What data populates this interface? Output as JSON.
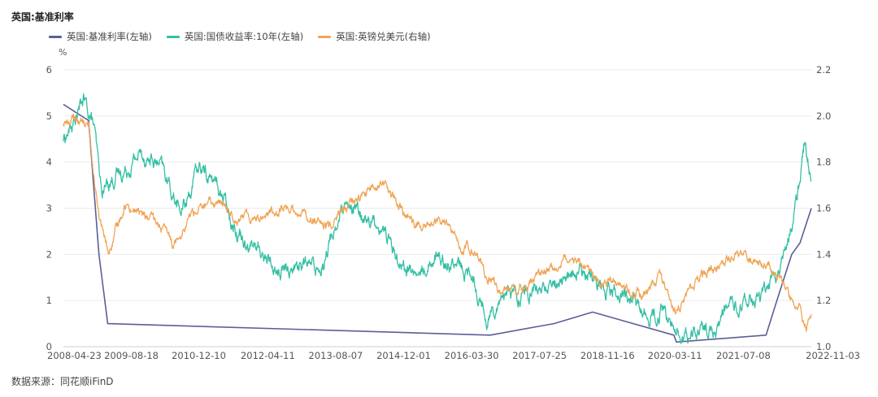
{
  "chart_data": {
    "type": "line",
    "title": "英国:基准利率",
    "source": "数据来源：同花顺iFinD",
    "left_axis": {
      "unit": "%",
      "ylim": [
        0,
        6
      ],
      "ticks": [
        "0",
        "1",
        "2",
        "3",
        "4",
        "5",
        "6"
      ]
    },
    "right_axis": {
      "ylim": [
        1.0,
        2.2
      ],
      "ticks": [
        "1.0",
        "1.2",
        "1.4",
        "1.6",
        "1.8",
        "2.0",
        "2.2"
      ]
    },
    "x_range": [
      2008.31,
      2022.84
    ],
    "x_ticks": [
      {
        "label": "2008-04-23",
        "t": 2008.31
      },
      {
        "label": "2009-08-18",
        "t": 2009.63
      },
      {
        "label": "2010-12-10",
        "t": 2010.94
      },
      {
        "label": "2012-04-11",
        "t": 2012.28
      },
      {
        "label": "2013-08-07",
        "t": 2013.6
      },
      {
        "label": "2014-12-01",
        "t": 2014.92
      },
      {
        "label": "2016-03-30",
        "t": 2016.24
      },
      {
        "label": "2017-07-25",
        "t": 2017.56
      },
      {
        "label": "2018-11-16",
        "t": 2018.88
      },
      {
        "label": "2020-03-11",
        "t": 2020.19
      },
      {
        "label": "2021-07-08",
        "t": 2021.52
      },
      {
        "label": "2022-11-03",
        "t": 2022.84
      }
    ],
    "series": [
      {
        "name": "英国:基准利率(左轴)",
        "axis": "left",
        "color": "#5a5f96",
        "points": [
          [
            2008.31,
            5.25
          ],
          [
            2008.8,
            4.9
          ],
          [
            2009.0,
            2.0
          ],
          [
            2009.17,
            0.5
          ],
          [
            2016.6,
            0.25
          ],
          [
            2017.84,
            0.5
          ],
          [
            2018.59,
            0.75
          ],
          [
            2020.17,
            0.25
          ],
          [
            2020.22,
            0.1
          ],
          [
            2021.96,
            0.25
          ],
          [
            2022.17,
            1.0
          ],
          [
            2022.46,
            2.0
          ],
          [
            2022.62,
            2.25
          ],
          [
            2022.84,
            3.0
          ]
        ]
      },
      {
        "name": "英国:国债收益率:10年(左轴)",
        "axis": "left",
        "color": "#35bfa4",
        "points": [
          [
            2008.31,
            4.5
          ],
          [
            2008.5,
            4.8
          ],
          [
            2008.7,
            5.35
          ],
          [
            2008.9,
            4.8
          ],
          [
            2009.05,
            3.3
          ],
          [
            2009.2,
            3.6
          ],
          [
            2009.5,
            3.8
          ],
          [
            2009.8,
            4.2
          ],
          [
            2010.2,
            3.9
          ],
          [
            2010.6,
            2.9
          ],
          [
            2010.95,
            3.9
          ],
          [
            2011.3,
            3.5
          ],
          [
            2011.7,
            2.5
          ],
          [
            2012.1,
            2.1
          ],
          [
            2012.5,
            1.6
          ],
          [
            2012.9,
            1.8
          ],
          [
            2013.3,
            1.7
          ],
          [
            2013.7,
            2.9
          ],
          [
            2014.0,
            2.9
          ],
          [
            2014.5,
            2.6
          ],
          [
            2014.9,
            1.8
          ],
          [
            2015.2,
            1.5
          ],
          [
            2015.5,
            2.0
          ],
          [
            2015.9,
            1.8
          ],
          [
            2016.3,
            1.4
          ],
          [
            2016.55,
            0.6
          ],
          [
            2016.85,
            1.2
          ],
          [
            2017.3,
            1.1
          ],
          [
            2017.8,
            1.3
          ],
          [
            2018.2,
            1.6
          ],
          [
            2018.6,
            1.5
          ],
          [
            2018.9,
            1.3
          ],
          [
            2019.3,
            1.1
          ],
          [
            2019.7,
            0.6
          ],
          [
            2020.0,
            0.8
          ],
          [
            2020.2,
            0.2
          ],
          [
            2020.6,
            0.3
          ],
          [
            2021.0,
            0.4
          ],
          [
            2021.2,
            0.8
          ],
          [
            2021.6,
            0.9
          ],
          [
            2021.9,
            1.1
          ],
          [
            2022.2,
            1.7
          ],
          [
            2022.45,
            2.5
          ],
          [
            2022.6,
            3.5
          ],
          [
            2022.72,
            4.5
          ],
          [
            2022.84,
            3.6
          ]
        ]
      },
      {
        "name": "英国:英镑兑美元(右轴)",
        "axis": "right",
        "color": "#f0a455",
        "points": [
          [
            2008.31,
            1.97
          ],
          [
            2008.6,
            1.99
          ],
          [
            2008.8,
            1.95
          ],
          [
            2009.0,
            1.55
          ],
          [
            2009.2,
            1.4
          ],
          [
            2009.5,
            1.62
          ],
          [
            2009.8,
            1.58
          ],
          [
            2010.2,
            1.52
          ],
          [
            2010.45,
            1.45
          ],
          [
            2010.8,
            1.58
          ],
          [
            2011.3,
            1.63
          ],
          [
            2011.7,
            1.56
          ],
          [
            2012.2,
            1.57
          ],
          [
            2012.6,
            1.61
          ],
          [
            2013.0,
            1.58
          ],
          [
            2013.4,
            1.51
          ],
          [
            2013.8,
            1.6
          ],
          [
            2014.2,
            1.67
          ],
          [
            2014.55,
            1.71
          ],
          [
            2014.9,
            1.58
          ],
          [
            2015.3,
            1.51
          ],
          [
            2015.7,
            1.55
          ],
          [
            2016.0,
            1.44
          ],
          [
            2016.3,
            1.43
          ],
          [
            2016.5,
            1.31
          ],
          [
            2016.8,
            1.24
          ],
          [
            2017.3,
            1.27
          ],
          [
            2017.9,
            1.35
          ],
          [
            2018.2,
            1.42
          ],
          [
            2018.6,
            1.3
          ],
          [
            2019.0,
            1.29
          ],
          [
            2019.6,
            1.22
          ],
          [
            2019.9,
            1.31
          ],
          [
            2020.2,
            1.15
          ],
          [
            2020.6,
            1.28
          ],
          [
            2021.0,
            1.35
          ],
          [
            2021.4,
            1.4
          ],
          [
            2021.8,
            1.37
          ],
          [
            2022.0,
            1.35
          ],
          [
            2022.3,
            1.26
          ],
          [
            2022.6,
            1.17
          ],
          [
            2022.74,
            1.08
          ],
          [
            2022.84,
            1.14
          ]
        ]
      }
    ]
  }
}
